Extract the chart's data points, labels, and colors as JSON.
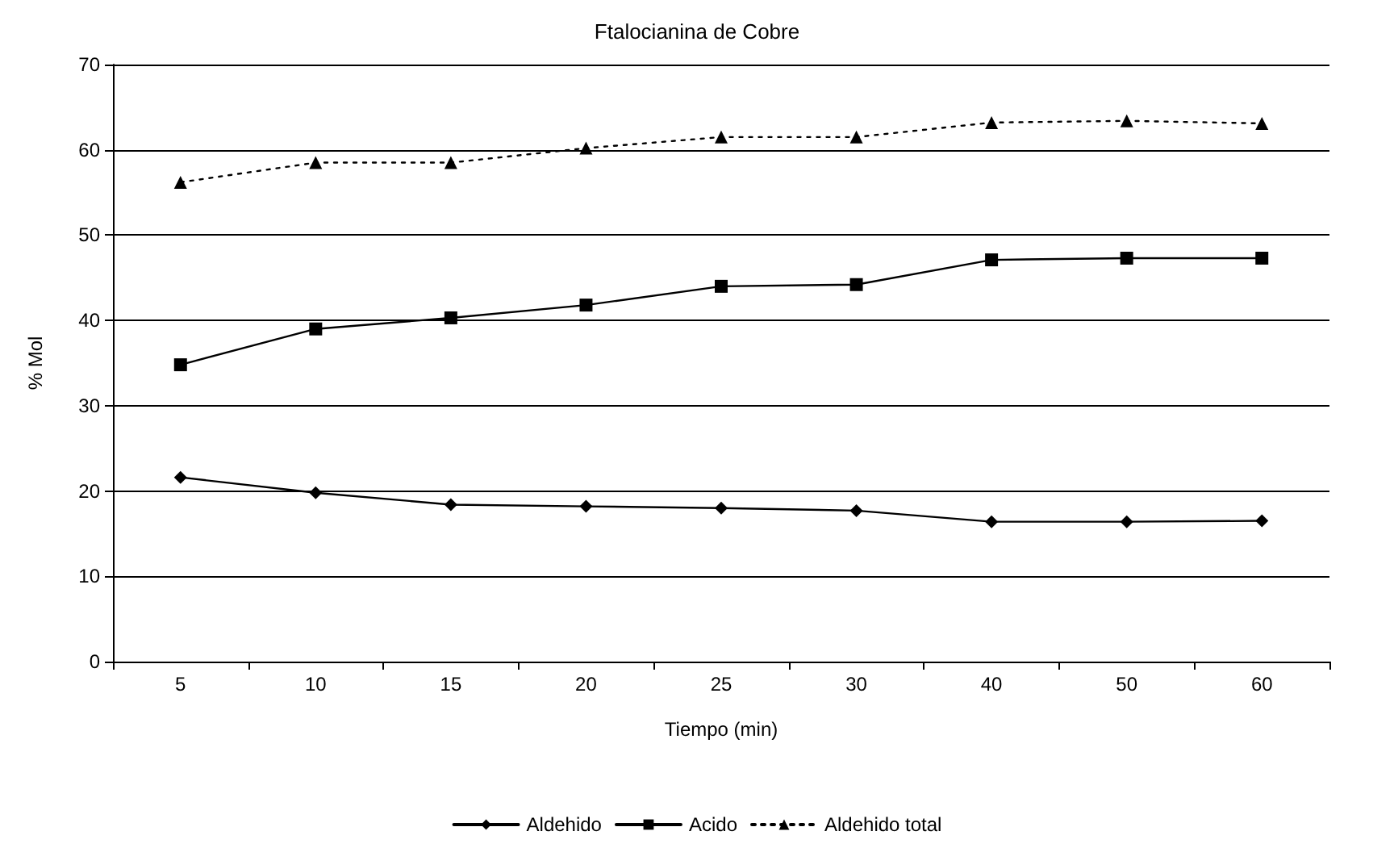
{
  "chart_data": {
    "type": "line",
    "title": "Ftalocianina de Cobre",
    "xlabel": "Tiempo (min)",
    "ylabel": "% Mol",
    "categories": [
      "5",
      "10",
      "15",
      "20",
      "25",
      "30",
      "40",
      "50",
      "60"
    ],
    "series": [
      {
        "name": "Aldehido",
        "color": "#000000",
        "marker": "diamond",
        "line_style": "solid",
        "values": [
          21.6,
          19.8,
          18.4,
          18.2,
          18.0,
          17.7,
          16.4,
          16.4,
          16.5
        ]
      },
      {
        "name": "Acido",
        "color": "#000000",
        "marker": "square",
        "line_style": "solid",
        "values": [
          34.8,
          39.0,
          40.3,
          41.8,
          44.0,
          44.2,
          47.1,
          47.3,
          47.3
        ]
      },
      {
        "name": "Aldehido total",
        "color": "#000000",
        "marker": "triangle",
        "line_style": "dotted",
        "values": [
          56.2,
          58.5,
          58.5,
          60.2,
          61.5,
          61.5,
          63.2,
          63.4,
          63.1
        ]
      }
    ],
    "ylim": [
      0,
      70
    ],
    "yticks": [
      0,
      10,
      20,
      30,
      40,
      50,
      60,
      70
    ],
    "grid": "y",
    "legend": "bottom"
  }
}
